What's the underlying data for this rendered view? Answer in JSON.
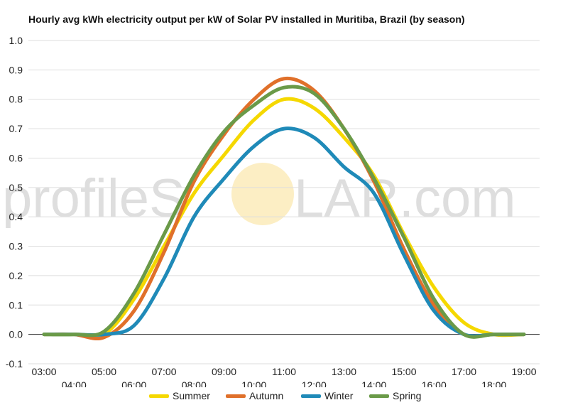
{
  "watermark": {
    "left": "profileS",
    "right": "LAR.com"
  },
  "chart_data": {
    "type": "line",
    "title": "Hourly avg kWh electricity output per kW of Solar PV installed in Muritiba, Brazil (by season)",
    "xlabel": "",
    "ylabel": "",
    "ylim": [
      -0.1,
      1.0
    ],
    "yticks": [
      "-0.1",
      "0.0",
      "0.1",
      "0.2",
      "0.3",
      "0.4",
      "0.5",
      "0.6",
      "0.7",
      "0.8",
      "0.9",
      "1.0"
    ],
    "x": [
      "03:00",
      "04:00",
      "05:00",
      "06:00",
      "07:00",
      "08:00",
      "09:00",
      "10:00",
      "11:00",
      "12:00",
      "13:00",
      "14:00",
      "15:00",
      "16:00",
      "17:00",
      "18:00",
      "19:00"
    ],
    "grid": true,
    "legend_position": "bottom",
    "series": [
      {
        "name": "Summer",
        "color": "#f5d800",
        "values": [
          0.0,
          0.0,
          0.0,
          0.12,
          0.3,
          0.48,
          0.61,
          0.73,
          0.8,
          0.77,
          0.67,
          0.54,
          0.34,
          0.16,
          0.04,
          0.0,
          0.0
        ]
      },
      {
        "name": "Autumn",
        "color": "#e0702a",
        "values": [
          0.0,
          0.0,
          -0.01,
          0.08,
          0.28,
          0.52,
          0.68,
          0.8,
          0.87,
          0.83,
          0.7,
          0.52,
          0.29,
          0.1,
          0.0,
          0.0,
          0.0
        ]
      },
      {
        "name": "Winter",
        "color": "#1f8ab8",
        "values": [
          0.0,
          0.0,
          0.0,
          0.03,
          0.19,
          0.4,
          0.53,
          0.64,
          0.7,
          0.67,
          0.57,
          0.48,
          0.27,
          0.08,
          0.0,
          0.0,
          0.0
        ]
      },
      {
        "name": "Spring",
        "color": "#6a9a48",
        "values": [
          0.0,
          0.0,
          0.01,
          0.14,
          0.34,
          0.54,
          0.69,
          0.78,
          0.84,
          0.82,
          0.7,
          0.53,
          0.33,
          0.12,
          0.0,
          0.0,
          0.0
        ]
      }
    ]
  }
}
